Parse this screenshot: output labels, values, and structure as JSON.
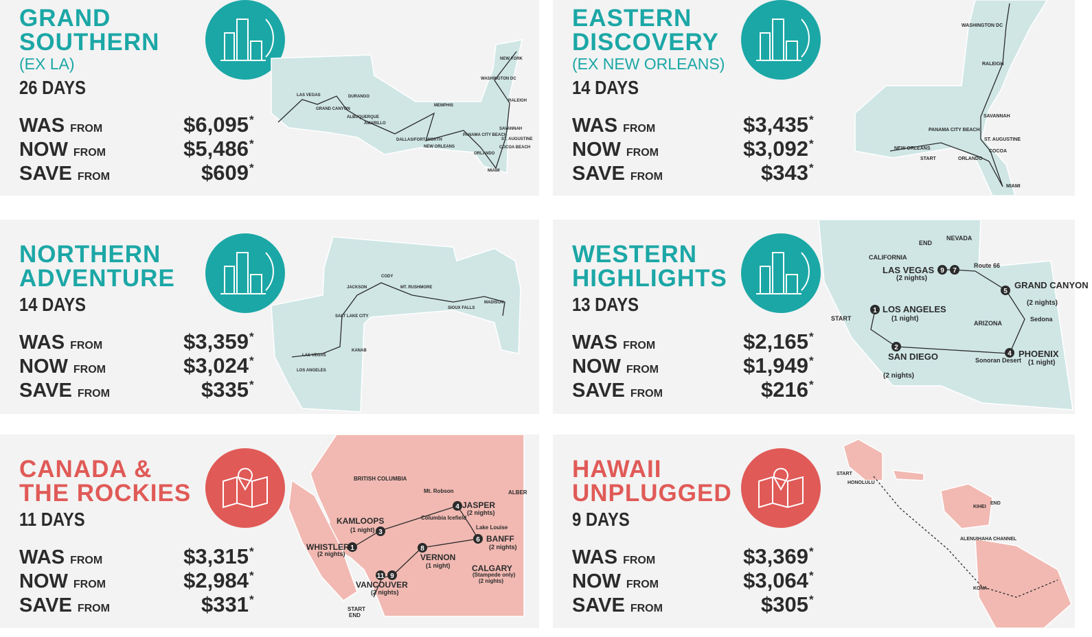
{
  "tours": [
    {
      "title": [
        "GRAND",
        "SOUTHERN"
      ],
      "subtitle": "(EX LA)",
      "days": "26 DAYS",
      "color": "#1ba7a6",
      "prices": [
        {
          "label": "WAS",
          "from": "FROM",
          "amount": "$6,095",
          "note": "*"
        },
        {
          "label": "NOW",
          "from": "FROM",
          "amount": "$5,486",
          "note": "*"
        },
        {
          "label": "SAVE",
          "from": "FROM",
          "amount": "$609",
          "note": "*"
        }
      ],
      "map_labels": [
        "LAS VEGAS",
        "GRAND CANYON",
        "DURANGO",
        "ALBUQUERQUE",
        "AMARILLO",
        "DALLAS/FORT WORTH",
        "MEMPHIS",
        "NEW ORLEANS",
        "PANAMA CITY BEACH",
        "ORLANDO",
        "MIAMI",
        "COCOA BEACH",
        "ST. AUGUSTINE",
        "SAVANNAH",
        "RALEIGH",
        "WASHINGTON DC",
        "NEW YORK"
      ]
    },
    {
      "title": [
        "EASTERN",
        "DISCOVERY"
      ],
      "subtitle": "(EX NEW ORLEANS)",
      "days": "14 DAYS",
      "color": "#1ba7a6",
      "prices": [
        {
          "label": "WAS",
          "from": "FROM",
          "amount": "$3,435",
          "note": "*"
        },
        {
          "label": "NOW",
          "from": "FROM",
          "amount": "$3,092",
          "note": "*"
        },
        {
          "label": "SAVE",
          "from": "FROM",
          "amount": "$343",
          "note": "*"
        }
      ],
      "map_labels": [
        "WASHINGTON DC",
        "RALEIGH",
        "SAVANNAH",
        "ST. AUGUSTINE",
        "COCOA",
        "ORLANDO",
        "MIAMI",
        "PANAMA CITY BEACH",
        "NEW ORLEANS",
        "START"
      ]
    },
    {
      "title": [
        "NORTHERN",
        "ADVENTURE"
      ],
      "days": "14 DAYS",
      "color": "#1ba7a6",
      "prices": [
        {
          "label": "WAS",
          "from": "FROM",
          "amount": "$3,359",
          "note": "*"
        },
        {
          "label": "NOW",
          "from": "FROM",
          "amount": "$3,024",
          "note": "*"
        },
        {
          "label": "SAVE",
          "from": "FROM",
          "amount": "$335",
          "note": "*"
        }
      ],
      "map_labels": [
        "CODY",
        "JACKSON",
        "MT. RUSHMORE",
        "SIOUX FALLS",
        "MADISON",
        "SALT LAKE CITY",
        "KANAB",
        "LAS VEGAS",
        "LOS ANGELES"
      ]
    },
    {
      "title": [
        "WESTERN",
        "HIGHLIGHTS"
      ],
      "days": "13 DAYS",
      "color": "#1ba7a6",
      "prices": [
        {
          "label": "WAS",
          "from": "FROM",
          "amount": "$2,165",
          "note": "*"
        },
        {
          "label": "NOW",
          "from": "FROM",
          "amount": "$1,949",
          "note": "*"
        },
        {
          "label": "SAVE",
          "from": "FROM",
          "amount": "$216",
          "note": "*"
        }
      ],
      "map_labels": [
        "END",
        "NEVADA",
        "CALIFORNIA",
        "LAS VEGAS",
        "(2 nights)",
        "Route 66",
        "GRAND CANYON",
        "(2 nights)",
        "START",
        "LOS ANGELES",
        "(1 night)",
        "Sedona",
        "ARIZONA",
        "SAN DIEGO",
        "(2 nights)",
        "Sonoran Desert",
        "PHOENIX",
        "(1 night)"
      ],
      "steps": [
        "9",
        "7",
        "5",
        "1",
        "2",
        "4"
      ]
    },
    {
      "title": [
        "CANADA &",
        "THE ROCKIES"
      ],
      "days": "11 DAYS",
      "color": "#e05a57",
      "prices": [
        {
          "label": "WAS",
          "from": "FROM",
          "amount": "$3,315",
          "note": "*"
        },
        {
          "label": "NOW",
          "from": "FROM",
          "amount": "$2,984",
          "note": "*"
        },
        {
          "label": "SAVE",
          "from": "FROM",
          "amount": "$331",
          "note": "*"
        }
      ],
      "map_labels": [
        "BRITISH COLUMBIA",
        "ALBER",
        "Mt. Robson",
        "JASPER",
        "(2 nights)",
        "KAMLOOPS",
        "(1 night)",
        "Columbia Icefield",
        "Lake Louise",
        "BANFF",
        "(2 nights)",
        "WHISTLER",
        "(2 nights)",
        "VERNON",
        "(1 night)",
        "CALGARY",
        "(Stampede only)",
        "(2 nights)",
        "VANCOUVER",
        "(2 nights)",
        "START",
        "END"
      ],
      "steps": [
        "4",
        "3",
        "6",
        "1",
        "8",
        "11",
        "9"
      ]
    },
    {
      "title": [
        "HAWAII",
        "UNPLUGGED"
      ],
      "days": "9 DAYS",
      "color": "#e05a57",
      "prices": [
        {
          "label": "WAS",
          "from": "FROM",
          "amount": "$3,369",
          "note": "*"
        },
        {
          "label": "NOW",
          "from": "FROM",
          "amount": "$3,064",
          "note": "*"
        },
        {
          "label": "SAVE",
          "from": "FROM",
          "amount": "$305",
          "note": "*"
        }
      ],
      "map_labels": [
        "START",
        "HONOLULU",
        "KIHEI",
        "END",
        "ALENUIHAHA CHANNEL",
        "KONA"
      ]
    }
  ]
}
